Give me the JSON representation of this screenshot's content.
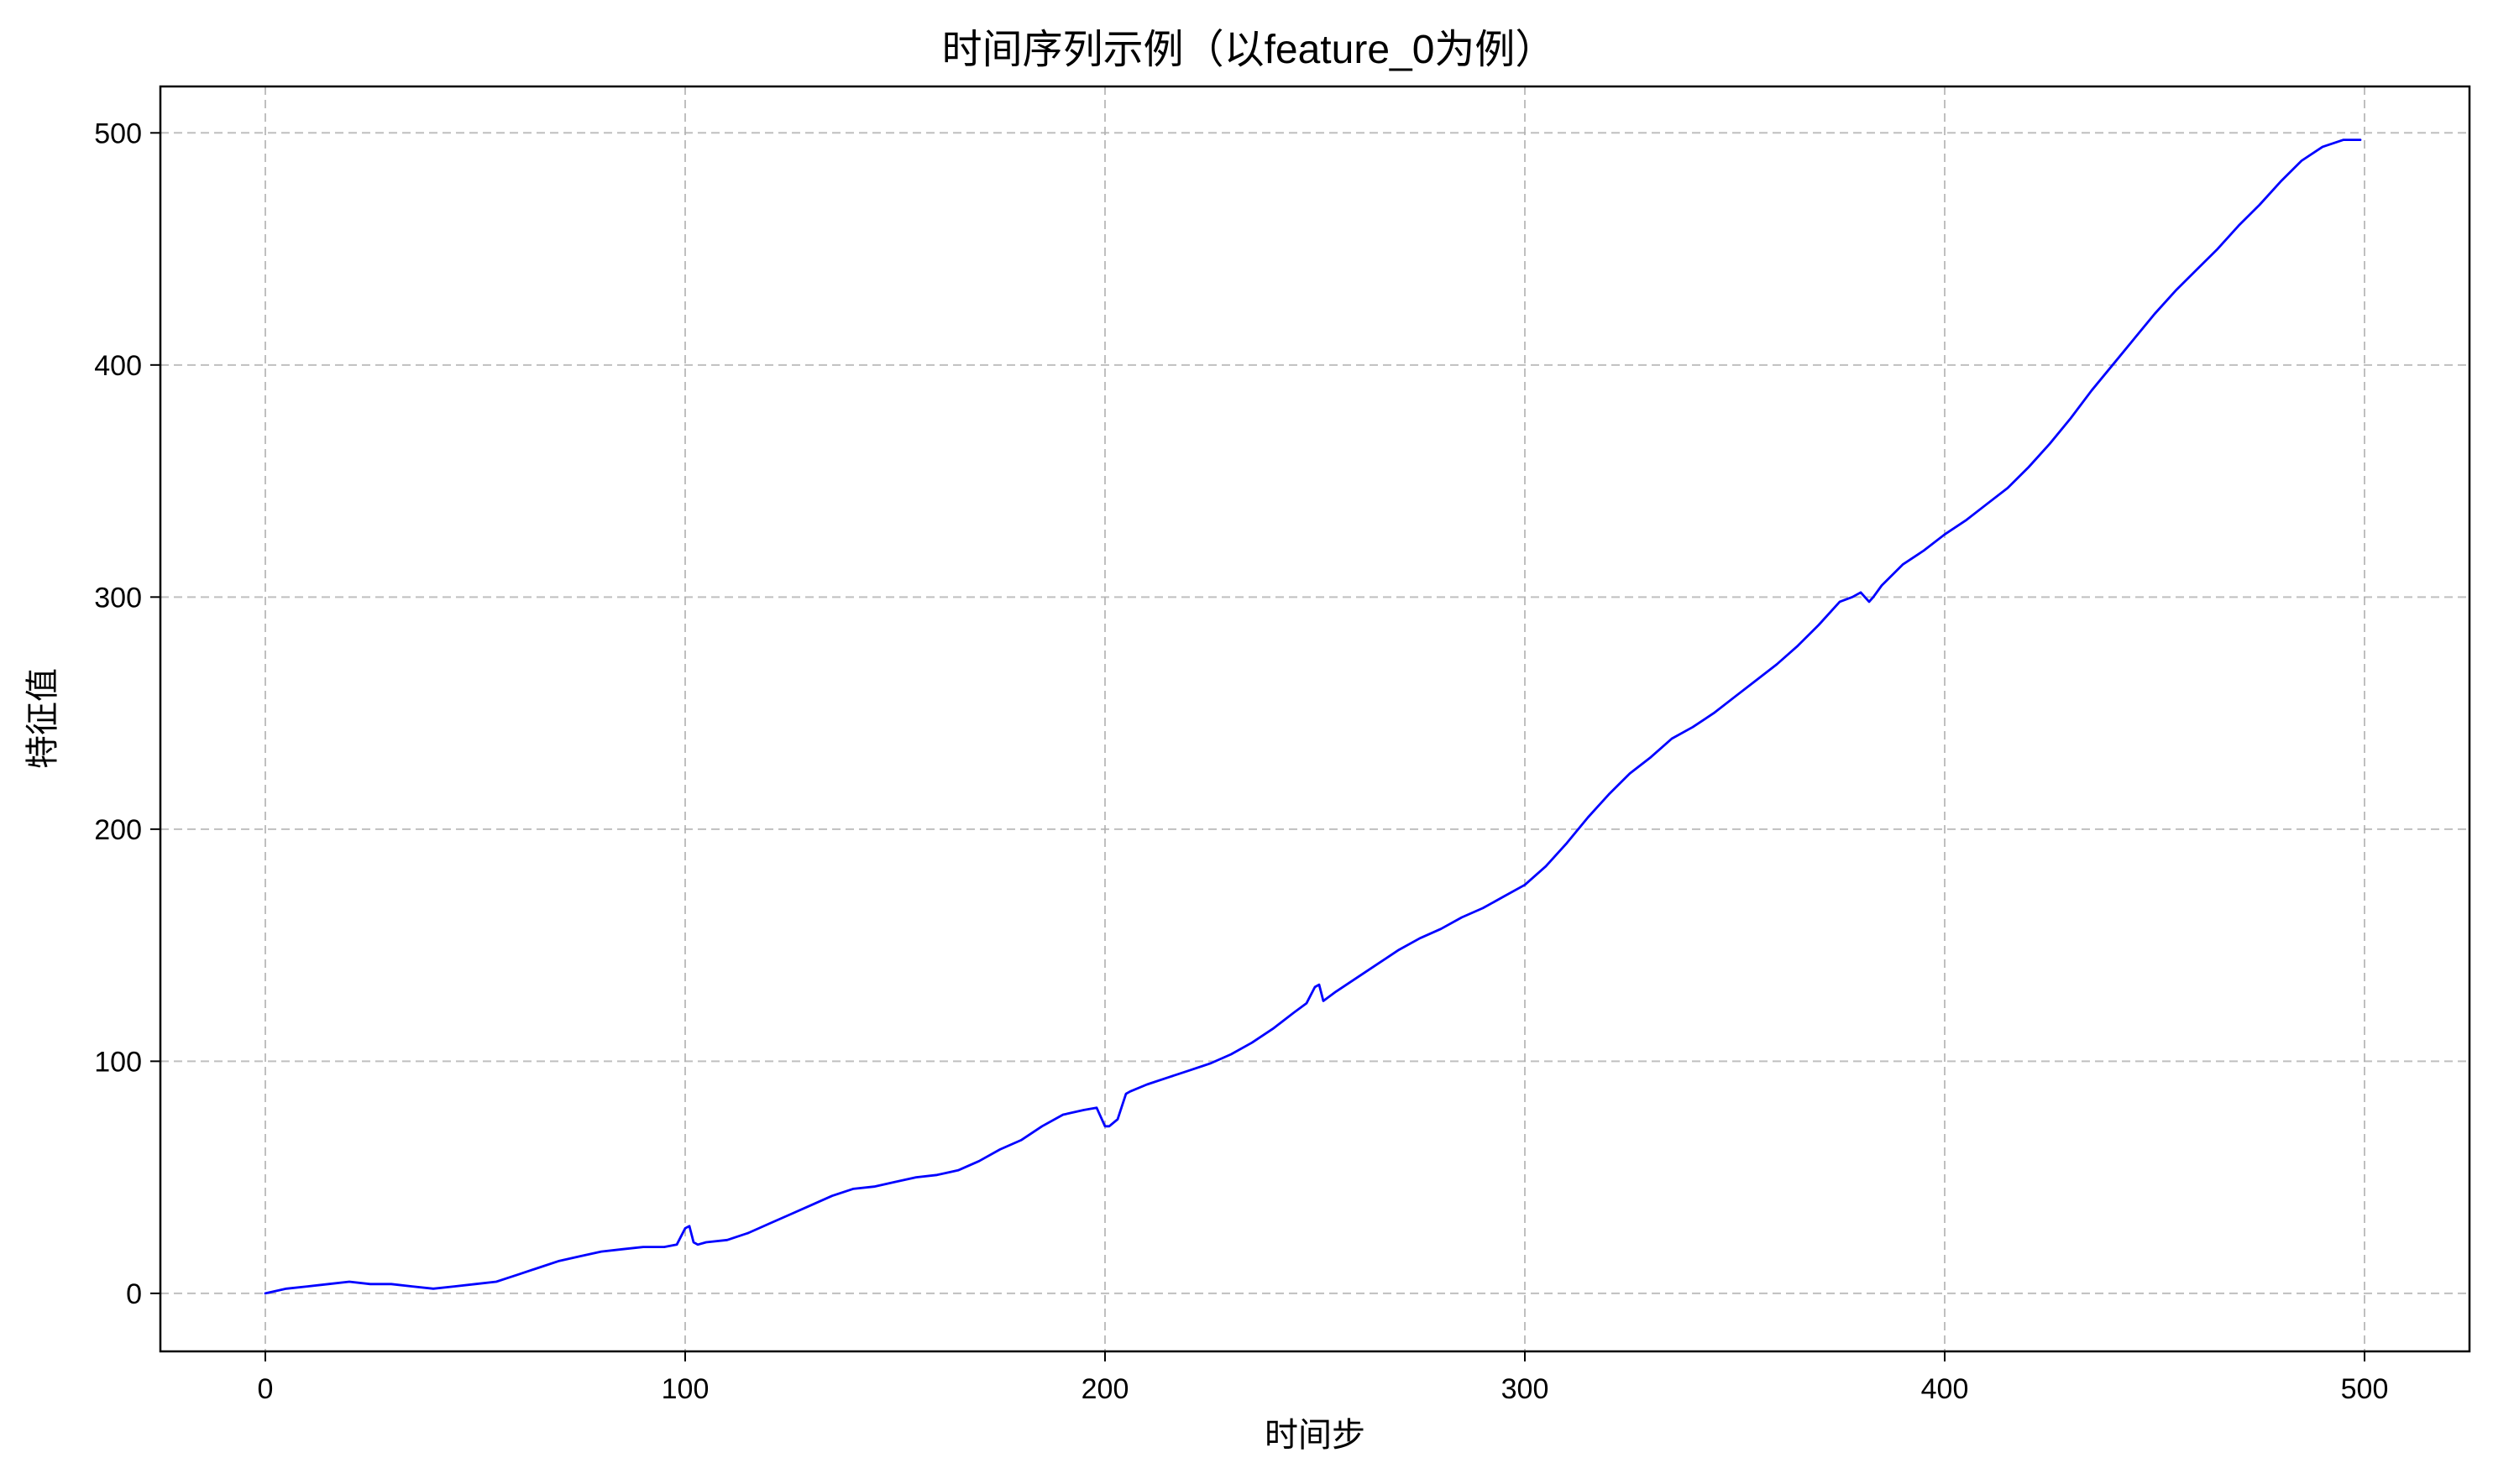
{
  "chart_data": {
    "type": "line",
    "title": "时间序列示例（以feature_0为例）",
    "xlabel": "时间步",
    "ylabel": "特征值",
    "xlim": [
      -25,
      525
    ],
    "ylim": [
      -25,
      520
    ],
    "x_ticks": [
      0,
      100,
      200,
      300,
      400,
      500
    ],
    "y_ticks": [
      0,
      100,
      200,
      300,
      400,
      500
    ],
    "grid": true,
    "line_color": "#0000ff",
    "grid_color": "#b0b0b0",
    "series": [
      {
        "x": [
          0,
          5,
          10,
          15,
          20,
          25,
          30,
          35,
          40,
          45,
          50,
          55,
          60,
          65,
          70,
          75,
          80,
          85,
          90,
          95,
          98,
          100,
          101,
          102,
          103,
          105,
          110,
          115,
          120,
          125,
          130,
          135,
          140,
          145,
          150,
          155,
          160,
          165,
          170,
          175,
          180,
          185,
          190,
          195,
          198,
          200,
          201,
          203,
          205,
          206,
          210,
          215,
          220,
          225,
          230,
          235,
          240,
          245,
          248,
          250,
          251,
          252,
          255,
          260,
          265,
          270,
          275,
          280,
          285,
          290,
          295,
          300,
          305,
          310,
          315,
          320,
          325,
          330,
          335,
          340,
          345,
          350,
          355,
          360,
          365,
          370,
          375,
          378,
          380,
          382,
          383,
          385,
          390,
          395,
          400,
          405,
          410,
          415,
          420,
          425,
          430,
          435,
          440,
          445,
          450,
          455,
          460,
          465,
          470,
          475,
          480,
          485,
          490,
          495,
          499
        ],
        "y": [
          0,
          2,
          3,
          4,
          5,
          4,
          4,
          3,
          2,
          3,
          4,
          5,
          8,
          11,
          14,
          16,
          18,
          19,
          20,
          20,
          21,
          28,
          29,
          22,
          21,
          22,
          23,
          26,
          30,
          34,
          38,
          42,
          45,
          46,
          48,
          50,
          51,
          53,
          57,
          62,
          66,
          72,
          77,
          79,
          80,
          72,
          72,
          75,
          86,
          87,
          90,
          93,
          96,
          99,
          103,
          108,
          114,
          121,
          125,
          132,
          133,
          126,
          130,
          136,
          142,
          148,
          153,
          157,
          162,
          166,
          171,
          176,
          184,
          194,
          205,
          215,
          224,
          231,
          239,
          244,
          250,
          257,
          264,
          271,
          279,
          288,
          298,
          300,
          302,
          298,
          300,
          305,
          314,
          320,
          327,
          333,
          340,
          347,
          356,
          366,
          377,
          389,
          400,
          411,
          422,
          432,
          441,
          450,
          460,
          469,
          479,
          488,
          494,
          497,
          497
        ]
      }
    ]
  }
}
